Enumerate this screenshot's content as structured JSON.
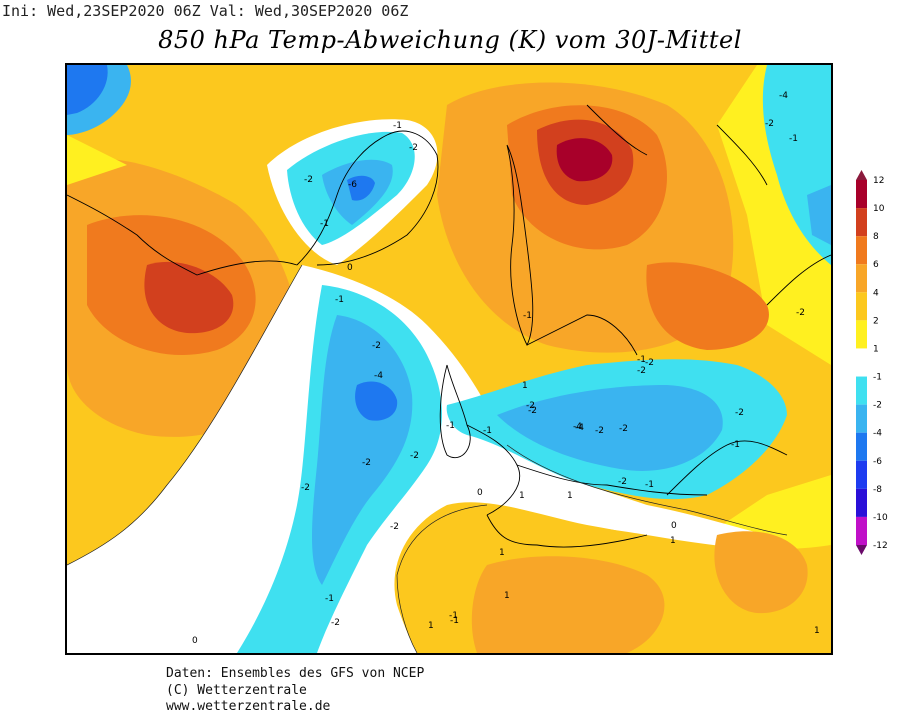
{
  "header": {
    "init_label": "Ini:",
    "init_date": "Wed,23SEP2020 06Z",
    "valid_label": "Val:",
    "valid_date": "Wed,30SEP2020 06Z"
  },
  "title": "850 hPa Temp-Abweichung (K) vom 30J-Mittel",
  "legend": {
    "unit": "K",
    "ticks": [
      "12",
      "10",
      "8",
      "6",
      "4",
      "2",
      "1",
      "-1",
      "-2",
      "-4",
      "-6",
      "-8",
      "-10",
      "-12"
    ],
    "colors": {
      "above_12": "#8b1a3c",
      "10_12": "#a8002a",
      "8_10": "#d2401e",
      "6_8": "#f07a1e",
      "4_6": "#f8a628",
      "2_4": "#fcc81e",
      "1_2": "#fff020",
      "neutral": "#ffffff",
      "m1_m2": "#3fe0f0",
      "m2_m4": "#3ab4f0",
      "m4_m6": "#1e78f0",
      "m6_m8": "#1e3cf0",
      "m8_m10": "#2a10d8",
      "m10_m12": "#c010c8",
      "below_m12": "#6a0a6a"
    }
  },
  "map_labels": [
    {
      "text": "-4"
    },
    {
      "text": "-2"
    },
    {
      "text": "-1"
    },
    {
      "text": "-2"
    },
    {
      "text": "-6"
    },
    {
      "text": "-2"
    },
    {
      "text": "-1"
    },
    {
      "text": "-1"
    },
    {
      "text": "0"
    },
    {
      "text": "-1"
    },
    {
      "text": "-2"
    },
    {
      "text": "-4"
    },
    {
      "text": "-2"
    },
    {
      "text": "-2"
    },
    {
      "text": "-2"
    },
    {
      "text": "-2"
    },
    {
      "text": "-1"
    },
    {
      "text": "-2"
    },
    {
      "text": "-1"
    },
    {
      "text": "-2"
    },
    {
      "text": "-4"
    },
    {
      "text": "-2"
    },
    {
      "text": "-2"
    },
    {
      "text": "-1"
    },
    {
      "text": "-2"
    },
    {
      "text": "-2"
    },
    {
      "text": "-1"
    },
    {
      "text": "-2"
    },
    {
      "text": "1"
    },
    {
      "text": "1"
    },
    {
      "text": "1"
    },
    {
      "text": "0"
    },
    {
      "text": "1"
    },
    {
      "text": "-1"
    },
    {
      "text": "-4"
    },
    {
      "text": "-2"
    },
    {
      "text": "-1"
    },
    {
      "text": "-2"
    },
    {
      "text": "-1"
    },
    {
      "text": "-2"
    },
    {
      "text": "1"
    },
    {
      "text": "1"
    },
    {
      "text": "1"
    },
    {
      "text": "-1"
    },
    {
      "text": "0"
    },
    {
      "text": "1"
    },
    {
      "text": "-1"
    },
    {
      "text": "0"
    }
  ],
  "footer": {
    "line1": "Daten: Ensembles des GFS von NCEP",
    "line2": "(C) Wetterzentrale",
    "line3": "www.wetterzentrale.de"
  }
}
